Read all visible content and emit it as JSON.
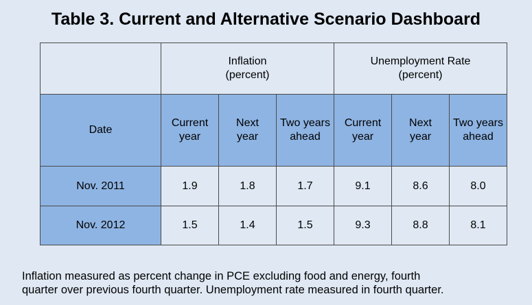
{
  "title": "Table 3. Current and Alternative Scenario Dashboard",
  "groups": {
    "inflation": [
      "Inflation",
      "(percent)"
    ],
    "unemployment": [
      "Unemployment Rate",
      "(percent)"
    ]
  },
  "columns": {
    "date": "Date",
    "current_year": [
      "Current",
      "year"
    ],
    "next_year": [
      "Next",
      "year"
    ],
    "two_years_ahead": [
      "Two years",
      "ahead"
    ]
  },
  "rows": [
    {
      "date": "Nov. 2011",
      "infl": [
        "1.9",
        "1.8",
        "1.7"
      ],
      "unemp": [
        "9.1",
        "8.6",
        "8.0"
      ]
    },
    {
      "date": "Nov. 2012",
      "infl": [
        "1.5",
        "1.4",
        "1.5"
      ],
      "unemp": [
        "9.3",
        "8.8",
        "8.1"
      ]
    }
  ],
  "note": [
    "Inflation measured as percent change in PCE excluding food and energy, fourth",
    "quarter over previous fourth quarter.  Unemployment rate measured in fourth quarter."
  ],
  "colors": {
    "background": "#dfe8f3",
    "header_blue": "#8eb4e3",
    "border": "#4a4a4a"
  }
}
